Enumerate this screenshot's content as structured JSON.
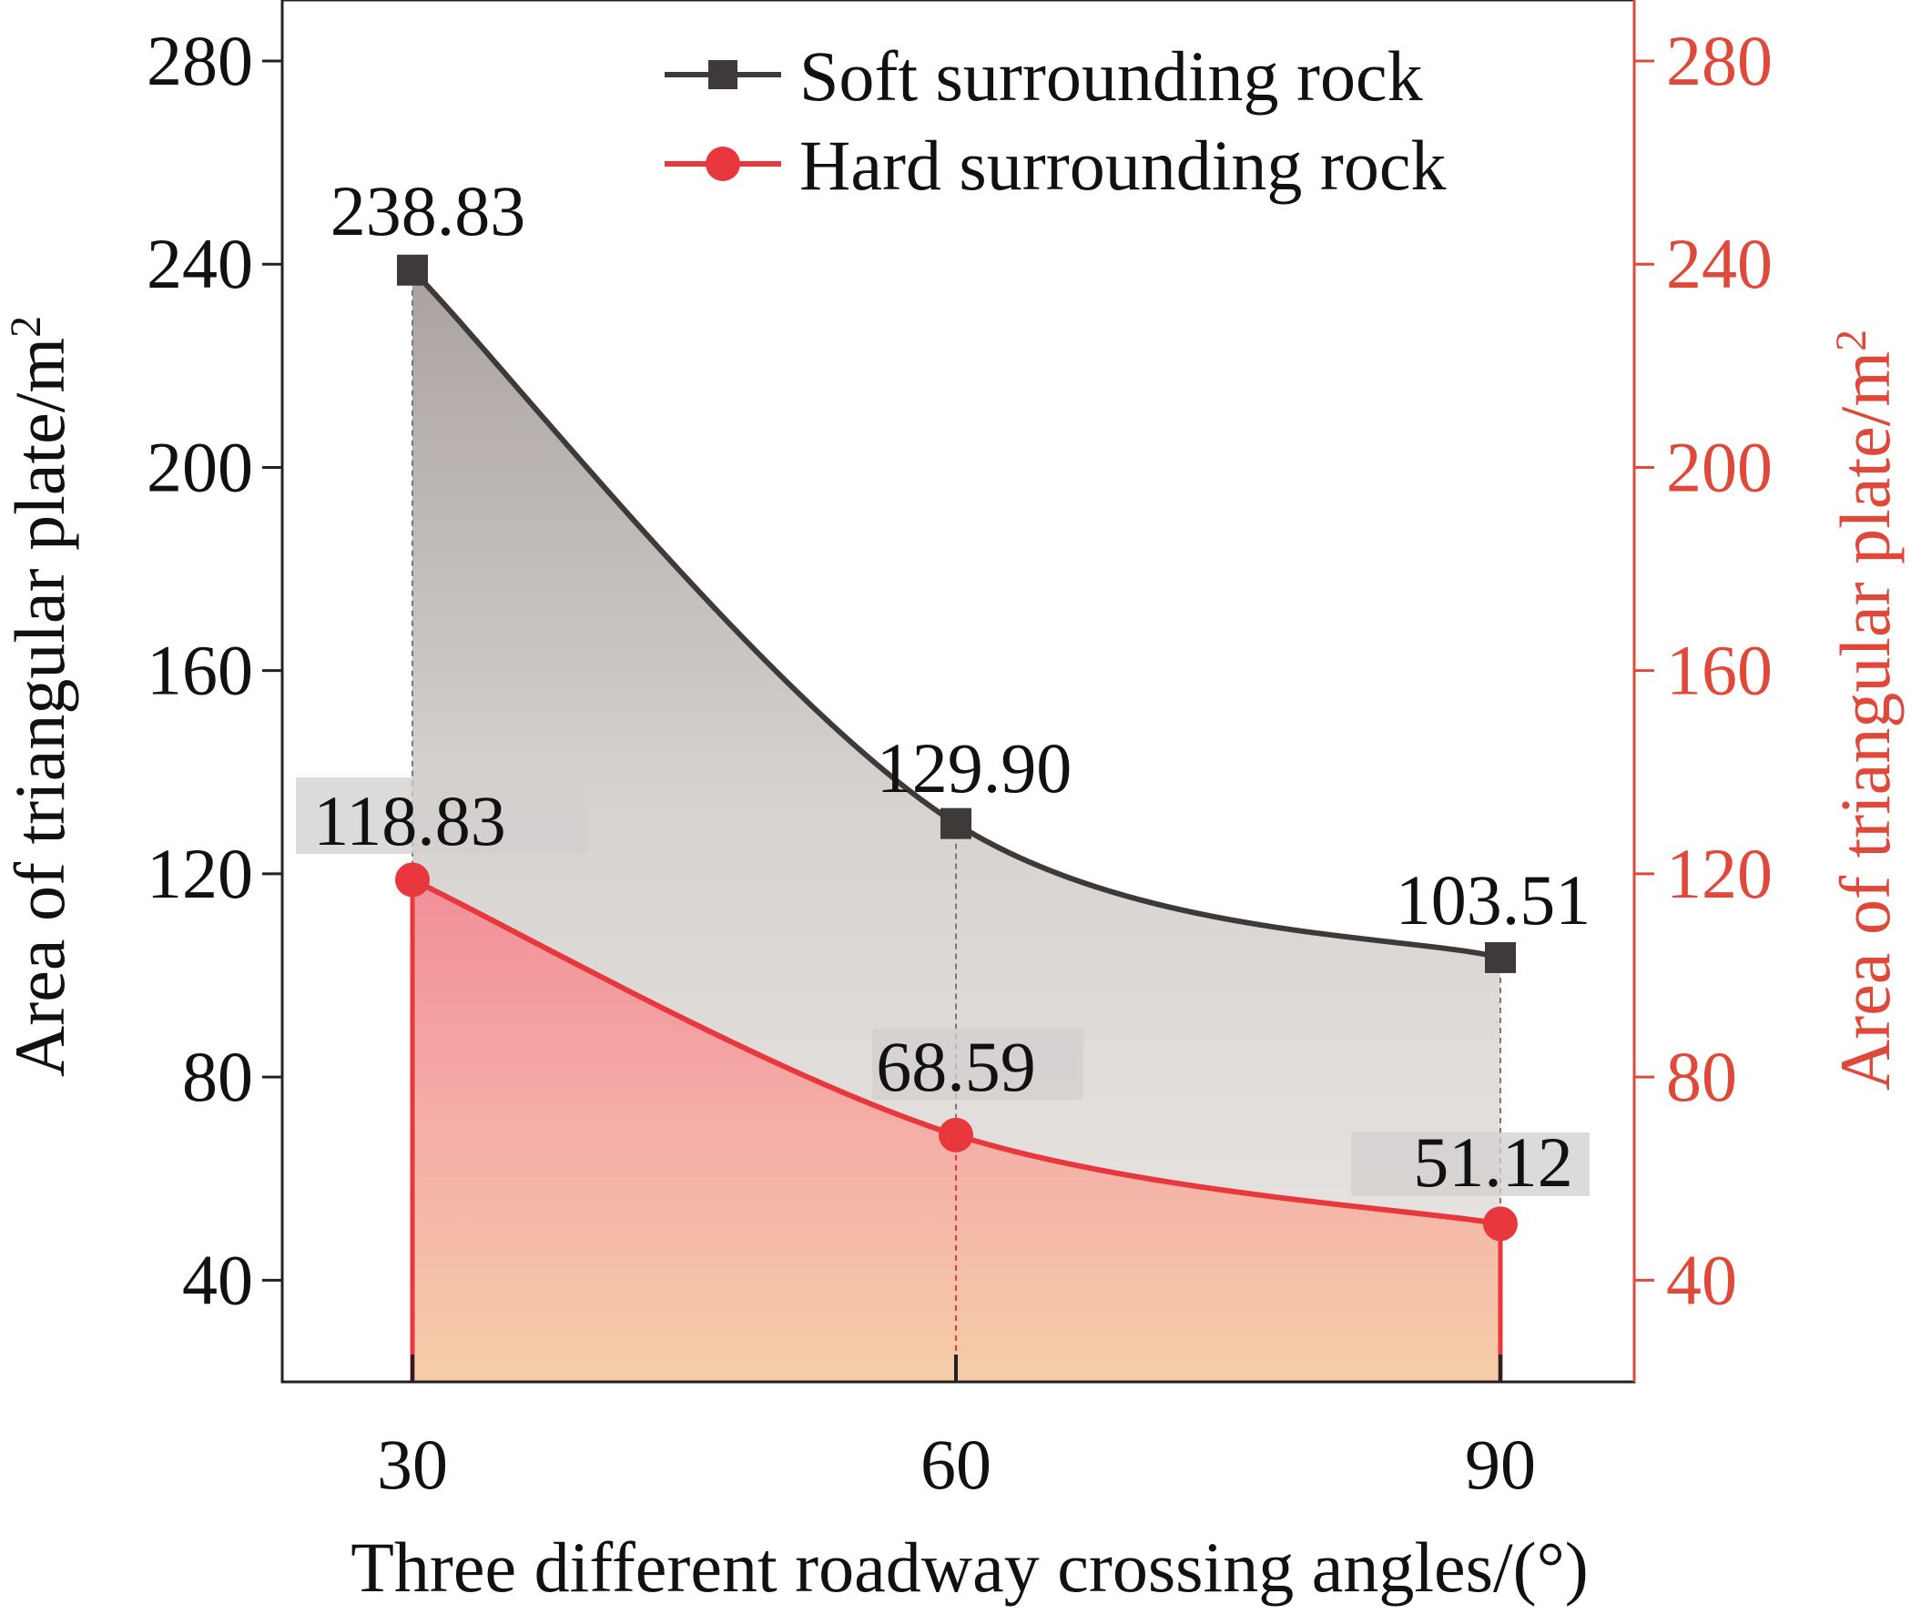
{
  "chart_data": {
    "type": "area",
    "x": [
      30,
      60,
      90
    ],
    "x_tick_labels": [
      "30",
      "60",
      "90"
    ],
    "xlabel": "Three different roadway crossing angles/(°)",
    "ylabel_left": "Area of triangular plate/m",
    "ylabel_right": "Area of triangular plate/m",
    "ylabel_superscript": "2",
    "ylim": [
      20,
      292
    ],
    "y_ticks": [
      40,
      80,
      120,
      160,
      200,
      240,
      280
    ],
    "y_tick_labels": [
      "40",
      "80",
      "120",
      "160",
      "200",
      "240",
      "280"
    ],
    "series": [
      {
        "name": "Soft surrounding rock",
        "values": [
          238.83,
          129.9,
          103.51
        ],
        "labels": [
          "238.83",
          "129.90",
          "103.51"
        ],
        "marker": "square",
        "color": "#3d3a39"
      },
      {
        "name": "Hard surrounding rock",
        "values": [
          118.83,
          68.59,
          51.12
        ],
        "labels": [
          "118.83",
          "68.59",
          "51.12"
        ],
        "marker": "circle",
        "color": "#e8383d"
      }
    ],
    "right_axis_color": "#e0493a",
    "legend": "top-right",
    "grid": false
  }
}
